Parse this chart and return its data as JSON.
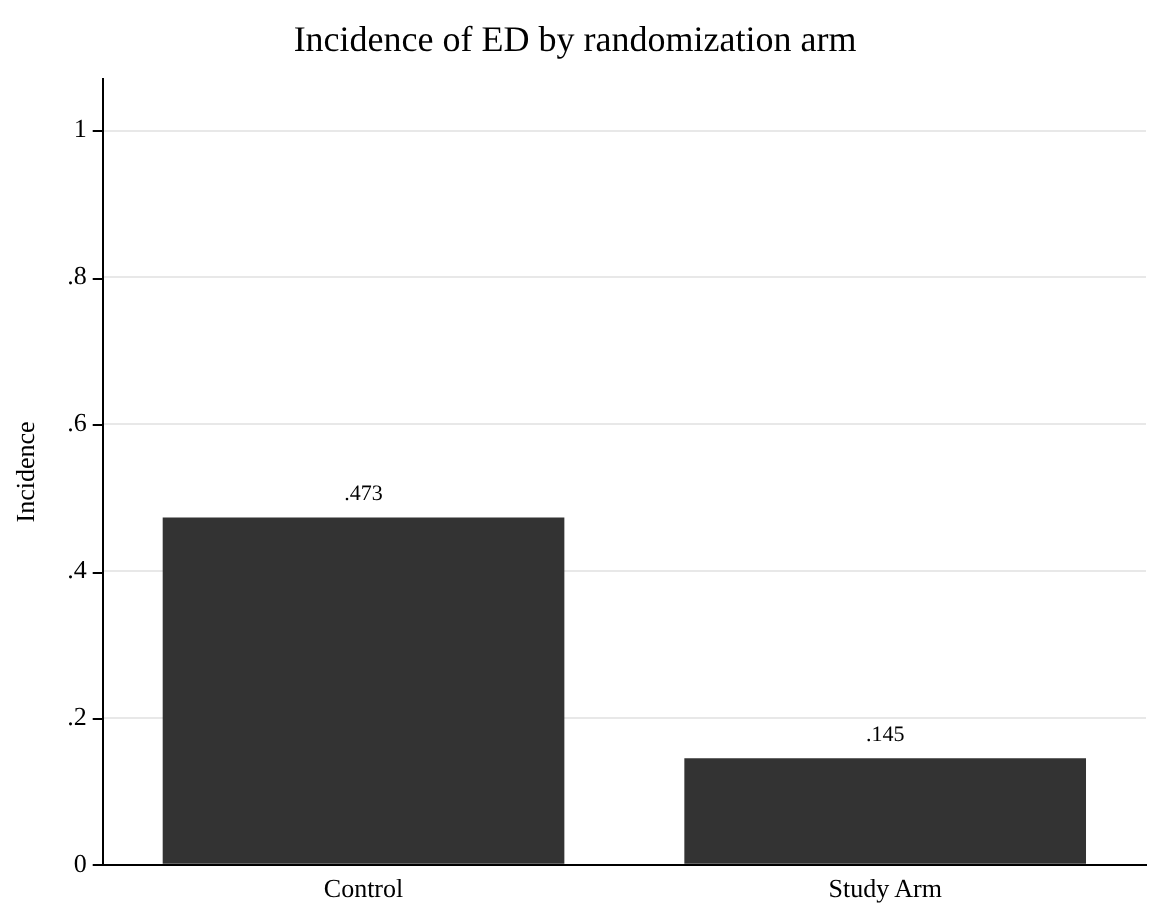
{
  "chart_data": {
    "type": "bar",
    "title": "Incidence of ED by randomization arm",
    "ylabel": "Incidence",
    "categories": [
      "Control",
      "Study Arm"
    ],
    "values": [
      0.473,
      0.145
    ],
    "color": "#333333",
    "value_labels": [
      ".473",
      ".145"
    ],
    "ylim": [
      0,
      1.07
    ],
    "yticks": [
      0,
      {
        "value": 0.2,
        "label": ".2"
      },
      {
        "value": 0.4,
        "label": ".4"
      },
      {
        "value": 0.6,
        "label": ".6"
      },
      {
        "value": 0.8,
        "label": ".8"
      },
      1
    ],
    "grid": "y",
    "legend": false
  }
}
